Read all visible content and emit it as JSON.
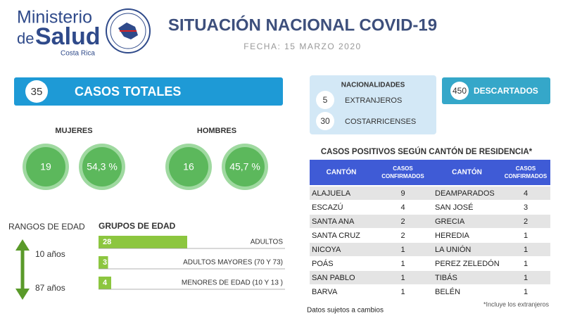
{
  "header": {
    "logo_ministerio": "Ministerio",
    "logo_de": "de",
    "logo_salud": "Salud",
    "logo_country": "Costa Rica",
    "title": "SITUACIÓN NACIONAL COVID-19",
    "date": "FECHA: 15 MARZO 2020"
  },
  "total": {
    "value": 35,
    "label": "CASOS TOTALES"
  },
  "gender": [
    {
      "label": "MUJERES",
      "count": 19,
      "percent": "54,3 %"
    },
    {
      "label": "HOMBRES",
      "count": 16,
      "percent": "45,7 %"
    }
  ],
  "age": {
    "ranges_title": "RANGOS DE EDAD",
    "min": "10 años",
    "max": "87 años",
    "groups_title": "GRUPOS DE EDAD",
    "groups": [
      {
        "count": 28,
        "label": "ADULTOS"
      },
      {
        "count": 3,
        "label": "ADULTOS MAYORES (70 Y 73)"
      },
      {
        "count": 4,
        "label": "MENORES DE EDAD (10 Y 13 )"
      }
    ]
  },
  "nationalities": {
    "title": "NACIONALIDADES",
    "items": [
      {
        "count": 5,
        "label": "EXTRANJEROS"
      },
      {
        "count": 30,
        "label": "COSTARRICENSES"
      }
    ]
  },
  "discarded": {
    "value": 450,
    "label": "DESCARTADOS"
  },
  "table": {
    "title": "CASOS POSITIVOS SEGÚN CANTÓN DE RESIDENCIA*",
    "headers": [
      "CANTÓN",
      "CASOS CONFIRMADOS",
      "CANTÓN",
      "CASOS CONFIRMADOS"
    ],
    "rows": [
      [
        "ALAJUELA",
        9,
        "DEAMPARADOS",
        4
      ],
      [
        "ESCAZÚ",
        4,
        "SAN JOSÉ",
        3
      ],
      [
        "SANTA ANA",
        2,
        "GRECIA",
        2
      ],
      [
        "SANTA CRUZ",
        2,
        "HEREDIA",
        1
      ],
      [
        "NICOYA",
        1,
        "LA UNIÓN",
        1
      ],
      [
        "POÁS",
        1,
        "PEREZ ZELEDÓN",
        1
      ],
      [
        "SAN PABLO",
        1,
        "TIBÁS",
        1
      ],
      [
        "BARVA",
        1,
        "BELÉN",
        1
      ]
    ]
  },
  "footnote": "*Incluye los extranjeros",
  "disclaimer": "Datos sujetos a cambios"
}
